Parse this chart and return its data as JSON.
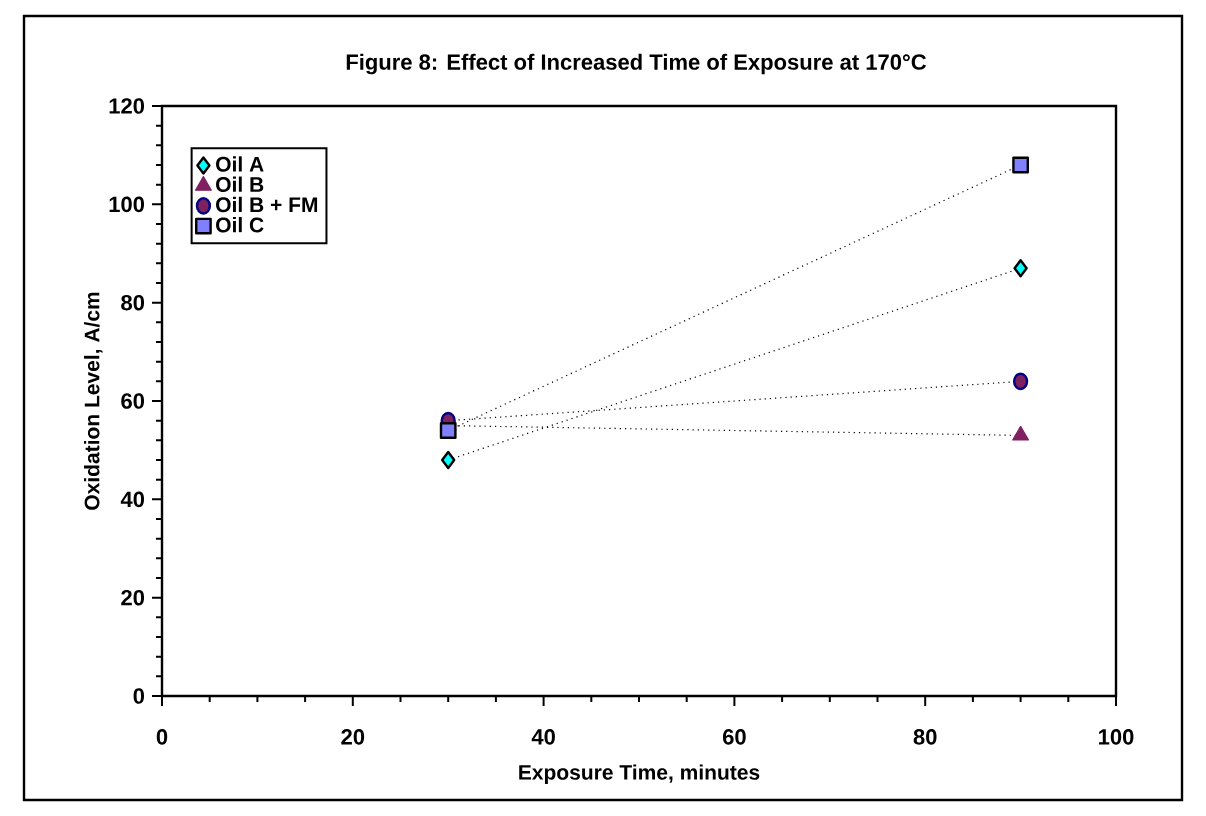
{
  "chart_data": {
    "type": "line",
    "title": "Figure 8: Effect of Increased Time of Exposure at 170°C",
    "xlabel": "Exposure Time, minutes",
    "ylabel": "Oxidation Level, A/cm",
    "xlim": [
      0,
      100
    ],
    "xticks": [
      0,
      20,
      40,
      60,
      80,
      100
    ],
    "ylim": [
      0,
      120
    ],
    "yticks": [
      0,
      20,
      40,
      60,
      80,
      100,
      120
    ],
    "grid": false,
    "legend": "top left",
    "line_style": "dotted",
    "x": [
      30,
      90
    ],
    "series": [
      {
        "name": "Oil A",
        "color": "#00ffff",
        "marker": "diamond",
        "values": [
          48,
          87
        ]
      },
      {
        "name": "Oil B",
        "color": "#7f2060",
        "marker": "triangle",
        "values": [
          55,
          53
        ]
      },
      {
        "name": "Oil B + FM",
        "color": "#7f2060",
        "marker": "circle",
        "values": [
          56,
          64
        ]
      },
      {
        "name": "Oil C",
        "color": "#8080ff",
        "marker": "square",
        "values": [
          54,
          108
        ]
      }
    ]
  }
}
